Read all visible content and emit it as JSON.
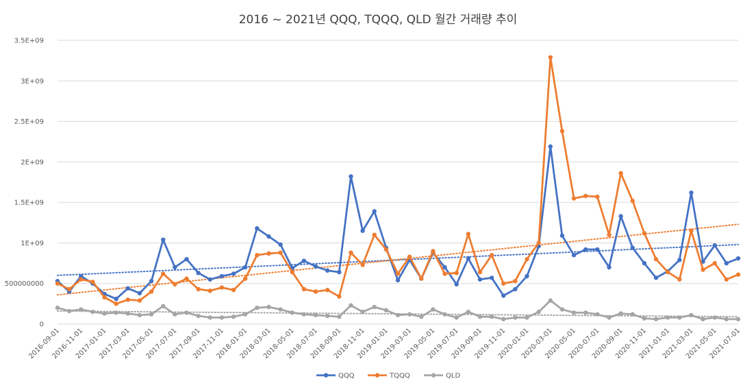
{
  "chart_data": {
    "type": "line",
    "title": "2016 ~ 2021년 QQQ, TQQQ, QLD 월간 거래량 추이",
    "xlabel": "",
    "ylabel": "",
    "ylim": [
      0,
      3500000000
    ],
    "yticks": [
      0,
      500000000,
      1000000000,
      1500000000,
      2000000000,
      2500000000,
      3000000000,
      3500000000
    ],
    "ytick_labels": [
      "0",
      "500000000",
      "1E+09",
      "1.5E+09",
      "2E+09",
      "2.5E+09",
      "3E+09",
      "3.5E+09"
    ],
    "x": [
      "2016-09-01",
      "2016-10-01",
      "2016-11-01",
      "2016-12-01",
      "2017-01-01",
      "2017-02-01",
      "2017-03-01",
      "2017-04-01",
      "2017-05-01",
      "2017-06-01",
      "2017-07-01",
      "2017-08-01",
      "2017-09-01",
      "2017-10-01",
      "2017-11-01",
      "2017-12-01",
      "2018-01-01",
      "2018-02-01",
      "2018-03-01",
      "2018-04-01",
      "2018-05-01",
      "2018-06-01",
      "2018-07-01",
      "2018-08-01",
      "2018-09-01",
      "2018-10-01",
      "2018-11-01",
      "2018-12-01",
      "2019-01-01",
      "2019-02-01",
      "2019-03-01",
      "2019-04-01",
      "2019-05-01",
      "2019-06-01",
      "2019-07-01",
      "2019-08-01",
      "2019-09-01",
      "2019-10-01",
      "2019-11-01",
      "2019-12-01",
      "2020-01-01",
      "2020-02-01",
      "2020-03-01",
      "2020-04-01",
      "2020-05-01",
      "2020-06-01",
      "2020-07-01",
      "2020-08-01",
      "2020-09-01",
      "2020-10-01",
      "2020-11-01",
      "2020-12-01",
      "2021-01-01",
      "2021-02-01",
      "2021-03-01",
      "2021-04-01",
      "2021-05-01",
      "2021-06-01",
      "2021-07-01"
    ],
    "xtick_labels": [
      "2016-09-01",
      "2016-11-01",
      "2017-01-01",
      "2017-03-01",
      "2017-05-01",
      "2017-07-01",
      "2017-09-01",
      "2017-11-01",
      "2018-01-01",
      "2018-03-01",
      "2018-05-01",
      "2018-07-01",
      "2018-09-01",
      "2018-11-01",
      "2019-01-01",
      "2019-03-01",
      "2019-05-01",
      "2019-07-01",
      "2019-09-01",
      "2019-11-01",
      "2020-01-01",
      "2020-03-01",
      "2020-05-01",
      "2020-07-01",
      "2020-09-01",
      "2020-11-01",
      "2021-01-01",
      "2021-03-01",
      "2021-05-01",
      "2021-07-01"
    ],
    "series": [
      {
        "name": "QQQ",
        "color": "#4472C4",
        "values": [
          530000000,
          400000000,
          590000000,
          500000000,
          370000000,
          310000000,
          440000000,
          380000000,
          530000000,
          1040000000,
          700000000,
          800000000,
          630000000,
          550000000,
          590000000,
          620000000,
          700000000,
          1180000000,
          1080000000,
          980000000,
          690000000,
          780000000,
          710000000,
          660000000,
          640000000,
          1820000000,
          1150000000,
          1390000000,
          940000000,
          540000000,
          790000000,
          560000000,
          880000000,
          700000000,
          490000000,
          810000000,
          550000000,
          570000000,
          350000000,
          430000000,
          590000000,
          960000000,
          2190000000,
          1090000000,
          850000000,
          920000000,
          920000000,
          700000000,
          1330000000,
          940000000,
          750000000,
          570000000,
          650000000,
          790000000,
          1620000000,
          770000000,
          970000000,
          750000000,
          810000000
        ]
      },
      {
        "name": "TQQQ",
        "color": "#ED7D31",
        "values": [
          500000000,
          430000000,
          550000000,
          520000000,
          330000000,
          250000000,
          300000000,
          290000000,
          400000000,
          620000000,
          490000000,
          560000000,
          430000000,
          410000000,
          450000000,
          420000000,
          560000000,
          850000000,
          870000000,
          880000000,
          640000000,
          430000000,
          400000000,
          420000000,
          340000000,
          880000000,
          730000000,
          1100000000,
          920000000,
          620000000,
          830000000,
          560000000,
          900000000,
          620000000,
          630000000,
          1110000000,
          640000000,
          850000000,
          500000000,
          530000000,
          800000000,
          1000000000,
          3290000000,
          2380000000,
          1550000000,
          1580000000,
          1570000000,
          1100000000,
          1860000000,
          1520000000,
          1120000000,
          800000000,
          640000000,
          550000000,
          1150000000,
          670000000,
          750000000,
          550000000,
          610000000
        ]
      },
      {
        "name": "QLD",
        "color": "#A5A5A5",
        "values": [
          200000000,
          160000000,
          180000000,
          150000000,
          130000000,
          140000000,
          130000000,
          110000000,
          120000000,
          220000000,
          120000000,
          140000000,
          100000000,
          80000000,
          80000000,
          90000000,
          120000000,
          200000000,
          210000000,
          180000000,
          140000000,
          120000000,
          110000000,
          100000000,
          90000000,
          230000000,
          150000000,
          210000000,
          170000000,
          110000000,
          120000000,
          90000000,
          180000000,
          120000000,
          80000000,
          150000000,
          90000000,
          90000000,
          60000000,
          80000000,
          80000000,
          150000000,
          290000000,
          180000000,
          140000000,
          140000000,
          120000000,
          80000000,
          130000000,
          120000000,
          70000000,
          60000000,
          80000000,
          80000000,
          110000000,
          60000000,
          80000000,
          60000000,
          60000000
        ]
      }
    ],
    "trendlines": [
      {
        "series": "QQQ",
        "style": "dotted",
        "start": 600000000,
        "end": 980000000
      },
      {
        "series": "TQQQ",
        "style": "dotted",
        "start": 360000000,
        "end": 1230000000
      },
      {
        "series": "QLD",
        "style": "dotted",
        "start": 160000000,
        "end": 90000000
      }
    ],
    "grid": true,
    "legend": "bottom"
  }
}
